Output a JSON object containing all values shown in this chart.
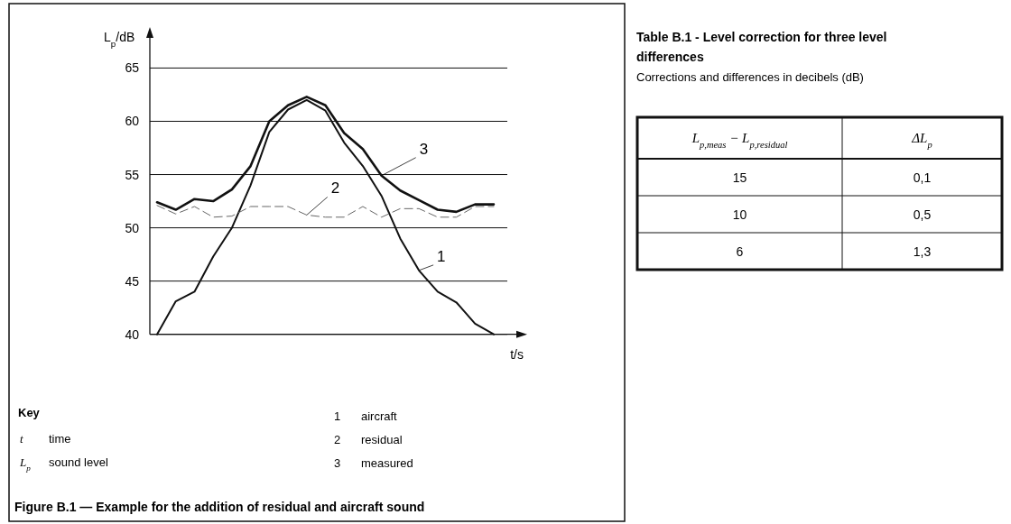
{
  "chart_data": [
    {
      "type": "line",
      "ylabel": "L$_{p}$/dB",
      "xlabel": "t/s",
      "categories": [
        null,
        null,
        null,
        null,
        null,
        null,
        null,
        null,
        null,
        null,
        null,
        null,
        null,
        null,
        null,
        null,
        null,
        null,
        null
      ],
      "ylim": [
        40,
        68
      ],
      "yticks": [
        40,
        45,
        50,
        55,
        60,
        65
      ],
      "grid": "y",
      "marker": "none",
      "series": [
        {
          "name": "1",
          "color": "#111111",
          "line_style": "solid",
          "values": [
            40,
            43.1,
            44,
            47.3,
            50,
            54,
            59,
            61.1,
            62,
            61,
            58,
            55.8,
            53,
            49,
            46,
            44,
            43,
            41,
            40
          ]
        },
        {
          "name": "2",
          "color": "#666666",
          "line_style": "dashed",
          "values": [
            52.1,
            51.3,
            52,
            51,
            51.1,
            52,
            52,
            52,
            51.2,
            51,
            51,
            52,
            51,
            51.8,
            51.8,
            51,
            51,
            52,
            52
          ]
        },
        {
          "name": "3",
          "color": "#111111",
          "line_style": "solid",
          "values": [
            52.4,
            51.7,
            52.7,
            52.5,
            53.6,
            55.8,
            60,
            61.5,
            62.3,
            61.5,
            58.9,
            57.4,
            54.9,
            53.5,
            52.6,
            51.7,
            51.5,
            52.2,
            52.2
          ]
        }
      ],
      "annotations": [
        "Key",
        "t",
        "time",
        "L$_{p}$",
        "sound level",
        "1",
        "aircraft",
        "2",
        "residual",
        "3",
        "measured",
        "Figure B.1 — Example for the addition of residual and aircraft sound"
      ]
    },
    {
      "type": "other",
      "title": "Table B.1 - Level correction for three level differences",
      "subtitle": "Corrections and differences in decibels (dB)",
      "annotations": [
        "L$_{p,meas}$ − L$_{p,residual}$",
        "ΔL$_{p}$",
        "15",
        "0,1",
        "10",
        "0,5",
        "6",
        "1,3"
      ]
    }
  ]
}
